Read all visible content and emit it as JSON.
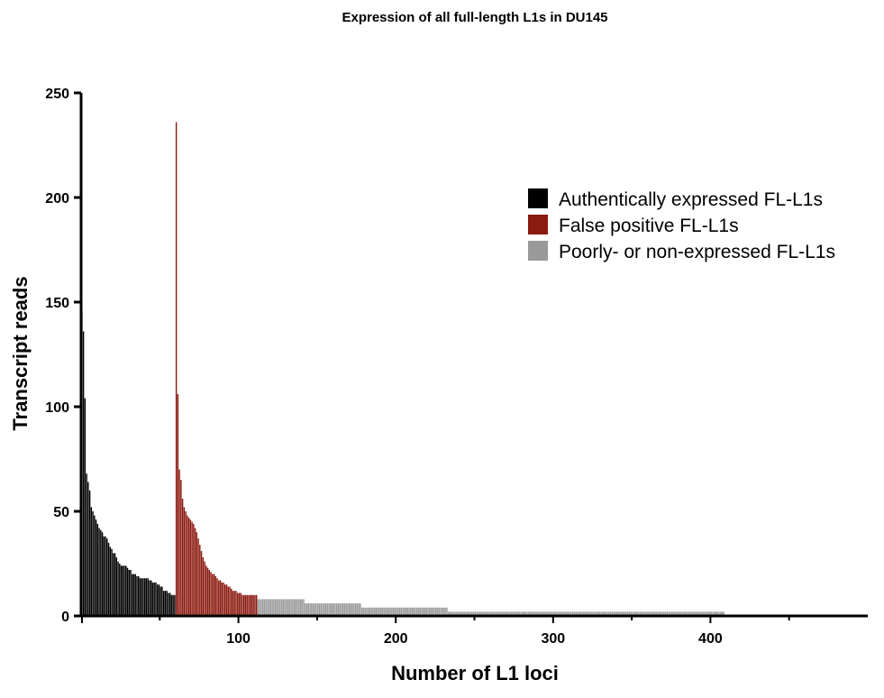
{
  "chart_data": {
    "type": "bar",
    "title": "Expression of all full-length L1s in DU145",
    "xlabel": "Number of L1 loci",
    "ylabel": "Transcript reads",
    "xlim": [
      0,
      500
    ],
    "ylim": [
      0,
      250
    ],
    "xticks": [
      100,
      200,
      300,
      400
    ],
    "yticks": [
      0,
      50,
      100,
      150,
      200,
      250
    ],
    "grid": false,
    "legend_position": "right",
    "series": [
      {
        "name": "Authentically expressed FL-L1s",
        "color": "#000000",
        "x_start": 1,
        "values": [
          146,
          136,
          104,
          68,
          64,
          60,
          52,
          50,
          48,
          46,
          44,
          42,
          41,
          40,
          38,
          38,
          37,
          35,
          33,
          32,
          30,
          30,
          28,
          26,
          25,
          24,
          24,
          24,
          24,
          23,
          22,
          22,
          20,
          20,
          20,
          19,
          19,
          18,
          18,
          18,
          18,
          18,
          18,
          17,
          17,
          16,
          16,
          16,
          15,
          15,
          14,
          14,
          12,
          12,
          12,
          11,
          11,
          10,
          10,
          10
        ]
      },
      {
        "name": "False positive FL-L1s",
        "color": "#8b1a10",
        "x_start": 61,
        "values": [
          236,
          106,
          70,
          65,
          56,
          52,
          50,
          48,
          47,
          46,
          45,
          44,
          42,
          40,
          37,
          34,
          31,
          28,
          26,
          24,
          23,
          22,
          21,
          20,
          20,
          19,
          18,
          17,
          17,
          16,
          16,
          15,
          15,
          14,
          14,
          13,
          12,
          12,
          12,
          11,
          11,
          11,
          10,
          10,
          10,
          10,
          10,
          10,
          10,
          10,
          10,
          10
        ]
      },
      {
        "name": "Poorly- or non-expressed FL-L1s",
        "color": "#999999",
        "segments": [
          {
            "from": 113,
            "to": 142,
            "value": 8
          },
          {
            "from": 143,
            "to": 178,
            "value": 6
          },
          {
            "from": 179,
            "to": 233,
            "value": 4
          },
          {
            "from": 234,
            "to": 409,
            "value": 2
          }
        ]
      }
    ]
  }
}
